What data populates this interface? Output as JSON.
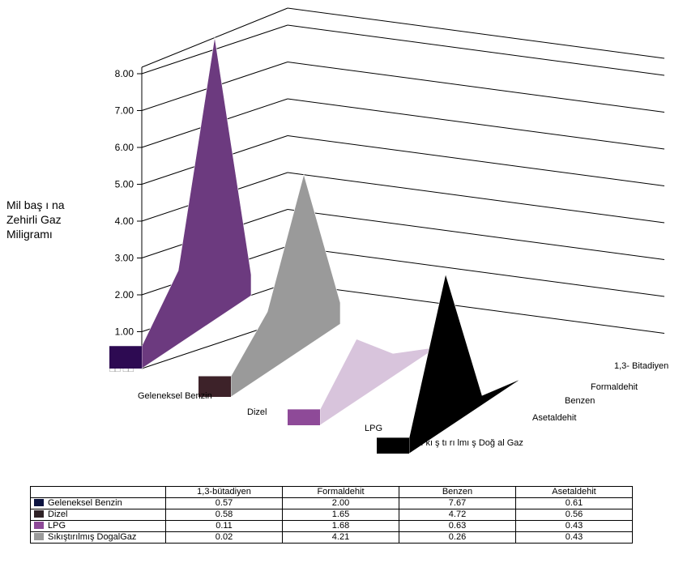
{
  "chart_data": {
    "type": "bar",
    "subtype": "3d-area",
    "y_axis_label_lines": [
      "Mil baş ı na",
      "Zehirli Gaz",
      "Miligramı"
    ],
    "yticks": [
      "8.00",
      "7.00",
      "6.00",
      "5.00",
      "4.00",
      "3.00",
      "2.00",
      "1.00"
    ],
    "ytick_values": [
      8,
      7,
      6,
      5,
      4,
      3,
      2,
      1
    ],
    "y_zero_label": "□□ □□",
    "ylim": [
      0,
      8
    ],
    "x_category_labels": [
      "Geleneksel Benzin",
      "Dizel",
      "LPG",
      "Sı kı ş tı rı lmı ş Doğ al Gaz"
    ],
    "depth_category_labels": [
      "Asetaldehit",
      "Benzen",
      "Formaldehit",
      "1,3- Bitadiyen"
    ],
    "legend_in_table": true,
    "series": [
      {
        "name": "Geleneksel Benzin",
        "table_name": "Geleneksel Benzin",
        "color": "#2d0a52",
        "values": [
          0.57,
          2.0,
          7.67,
          0.61
        ],
        "value_labels": [
          "0.57",
          "2.00",
          "7.67",
          "0.61"
        ]
      },
      {
        "name": "Dizel",
        "table_name": "Dizel",
        "color": "#3d2229",
        "values": [
          0.58,
          1.65,
          4.72,
          0.56
        ],
        "value_labels": [
          "0.58",
          "1.65",
          "4.72",
          "0.56"
        ]
      },
      {
        "name": "LPG",
        "table_name": "LPG",
        "color": "#8e4a98",
        "values": [
          0.11,
          1.68,
          0.63,
          0.43
        ],
        "value_labels": [
          "0.11",
          "1.68",
          "0.63",
          "0.43"
        ]
      },
      {
        "name": "Sıkıştırılmış DoğalGaz",
        "table_name": "Sıkıştırılmış DogalGaz",
        "color": "#000000",
        "values": [
          0.02,
          4.21,
          0.26,
          0.43
        ],
        "value_labels": [
          "0.02",
          "4.21",
          "0.26",
          "0.43"
        ]
      }
    ],
    "table_columns": [
      "1,3-bütadiyen",
      "Formaldehit",
      "Benzen",
      "Asetaldehit"
    ]
  },
  "colors": {
    "benzin_side": "#6c3a7f",
    "dizel_side": "#9a9a9a",
    "lpg_side": "#d8c4dc",
    "cng_side": "#000000",
    "grid": "#000000"
  }
}
